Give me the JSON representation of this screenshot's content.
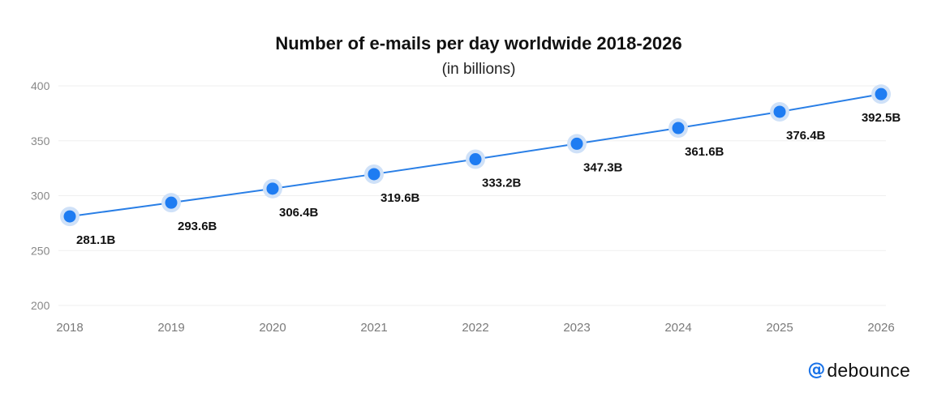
{
  "brand": {
    "at_symbol": "@",
    "name": "debounce",
    "accent": "#1a73e8"
  },
  "chart_data": {
    "type": "line",
    "title": "Number of e-mails per day worldwide 2018-2026",
    "subtitle": "(in billions)",
    "xlabel": "",
    "ylabel": "",
    "categories": [
      "2018",
      "2019",
      "2020",
      "2021",
      "2022",
      "2023",
      "2024",
      "2025",
      "2026"
    ],
    "values": [
      281.1,
      293.6,
      306.4,
      319.6,
      333.2,
      347.3,
      361.6,
      376.4,
      392.5
    ],
    "data_labels": [
      "281.1B",
      "293.6B",
      "306.4B",
      "319.6B",
      "333.2B",
      "347.3B",
      "361.6B",
      "376.4B",
      "392.5B"
    ],
    "yticks": [
      200,
      250,
      300,
      350,
      400
    ],
    "ylim": [
      200,
      400
    ],
    "grid": true,
    "legend": "none",
    "colors": {
      "line": "#2a7fe6",
      "marker": "#1e7cf2",
      "marker_halo": "#cfe1f8",
      "grid": "#efefef"
    }
  }
}
